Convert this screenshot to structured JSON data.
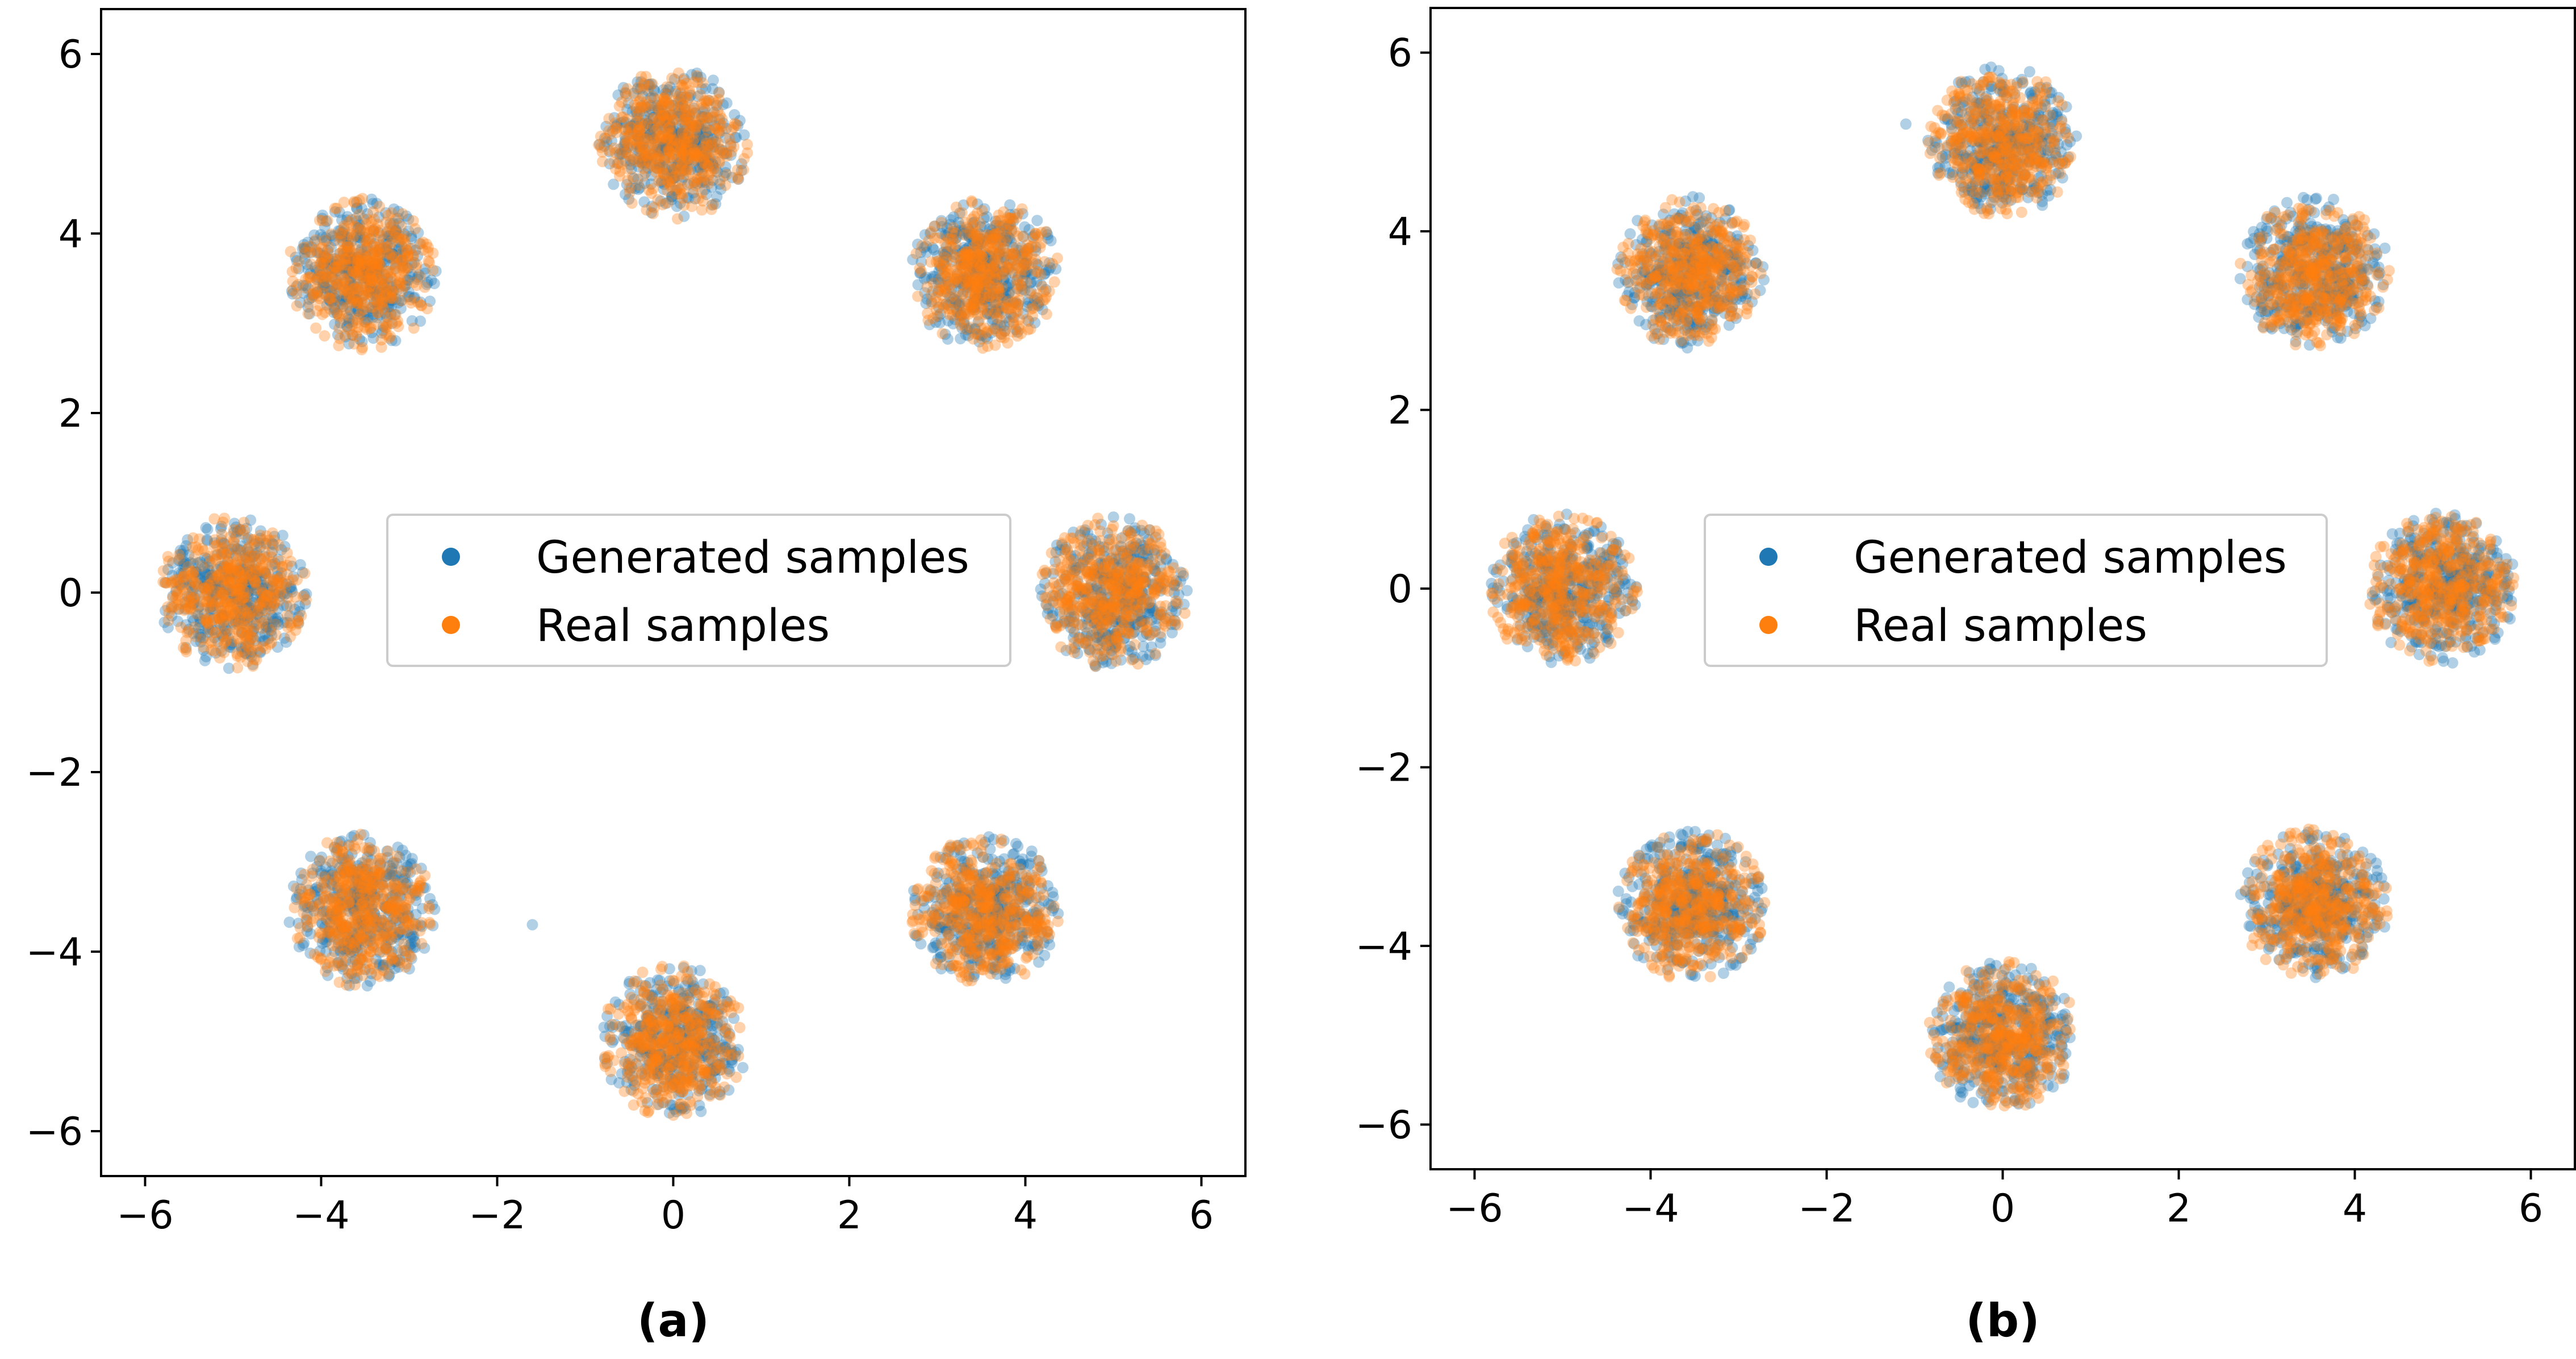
{
  "chart_data": [
    {
      "type": "scatter",
      "panel_label": "(a)",
      "xlim": [
        -6.5,
        6.5
      ],
      "ylim": [
        -6.5,
        6.5
      ],
      "xticks": [
        -6,
        -4,
        -2,
        0,
        2,
        4,
        6
      ],
      "yticks": [
        -6,
        -4,
        -2,
        0,
        2,
        4,
        6
      ],
      "xtick_labels": [
        "−6",
        "−4",
        "−2",
        "0",
        "2",
        "4",
        "6"
      ],
      "ytick_labels": [
        "−6",
        "−4",
        "−2",
        "0",
        "2",
        "4",
        "6"
      ],
      "grid": false,
      "legend_position": "center",
      "cluster_radius": 0.85,
      "series": [
        {
          "name": "Generated samples",
          "color": "#1f77b4",
          "alpha": 0.35,
          "points_per_cluster": 420,
          "centers": [
            [
              5.0,
              0.0
            ],
            [
              3.54,
              3.54
            ],
            [
              0.0,
              5.0
            ],
            [
              -3.54,
              3.54
            ],
            [
              -5.0,
              0.0
            ],
            [
              -3.54,
              -3.54
            ],
            [
              0.0,
              -5.0
            ],
            [
              3.54,
              -3.54
            ]
          ],
          "outliers": [
            [
              -1.6,
              -3.7
            ]
          ]
        },
        {
          "name": "Real samples",
          "color": "#ff7f0e",
          "alpha": 0.35,
          "points_per_cluster": 420,
          "centers": [
            [
              5.0,
              0.0
            ],
            [
              3.54,
              3.54
            ],
            [
              0.0,
              5.0
            ],
            [
              -3.54,
              3.54
            ],
            [
              -5.0,
              0.0
            ],
            [
              -3.54,
              -3.54
            ],
            [
              0.0,
              -5.0
            ],
            [
              3.54,
              -3.54
            ]
          ],
          "outliers": []
        }
      ]
    },
    {
      "type": "scatter",
      "panel_label": "(b)",
      "xlim": [
        -6.5,
        6.5
      ],
      "ylim": [
        -6.5,
        6.5
      ],
      "xticks": [
        -6,
        -4,
        -2,
        0,
        2,
        4,
        6
      ],
      "yticks": [
        -6,
        -4,
        -2,
        0,
        2,
        4,
        6
      ],
      "xtick_labels": [
        "−6",
        "−4",
        "−2",
        "0",
        "2",
        "4",
        "6"
      ],
      "ytick_labels": [
        "−6",
        "−4",
        "−2",
        "0",
        "2",
        "4",
        "6"
      ],
      "grid": false,
      "legend_position": "center",
      "cluster_radius": 0.85,
      "series": [
        {
          "name": "Generated samples",
          "color": "#1f77b4",
          "alpha": 0.35,
          "points_per_cluster": 420,
          "centers": [
            [
              5.0,
              0.0
            ],
            [
              3.54,
              3.54
            ],
            [
              0.0,
              5.0
            ],
            [
              -3.54,
              3.54
            ],
            [
              -5.0,
              0.0
            ],
            [
              -3.54,
              -3.54
            ],
            [
              0.0,
              -5.0
            ],
            [
              3.54,
              -3.54
            ]
          ],
          "outliers": [
            [
              -1.1,
              5.2
            ]
          ]
        },
        {
          "name": "Real samples",
          "color": "#ff7f0e",
          "alpha": 0.35,
          "points_per_cluster": 420,
          "centers": [
            [
              5.0,
              0.0
            ],
            [
              3.54,
              3.54
            ],
            [
              0.0,
              5.0
            ],
            [
              -3.54,
              3.54
            ],
            [
              -5.0,
              0.0
            ],
            [
              -3.54,
              -3.54
            ],
            [
              0.0,
              -5.0
            ],
            [
              3.54,
              -3.54
            ]
          ],
          "outliers": []
        }
      ]
    }
  ]
}
